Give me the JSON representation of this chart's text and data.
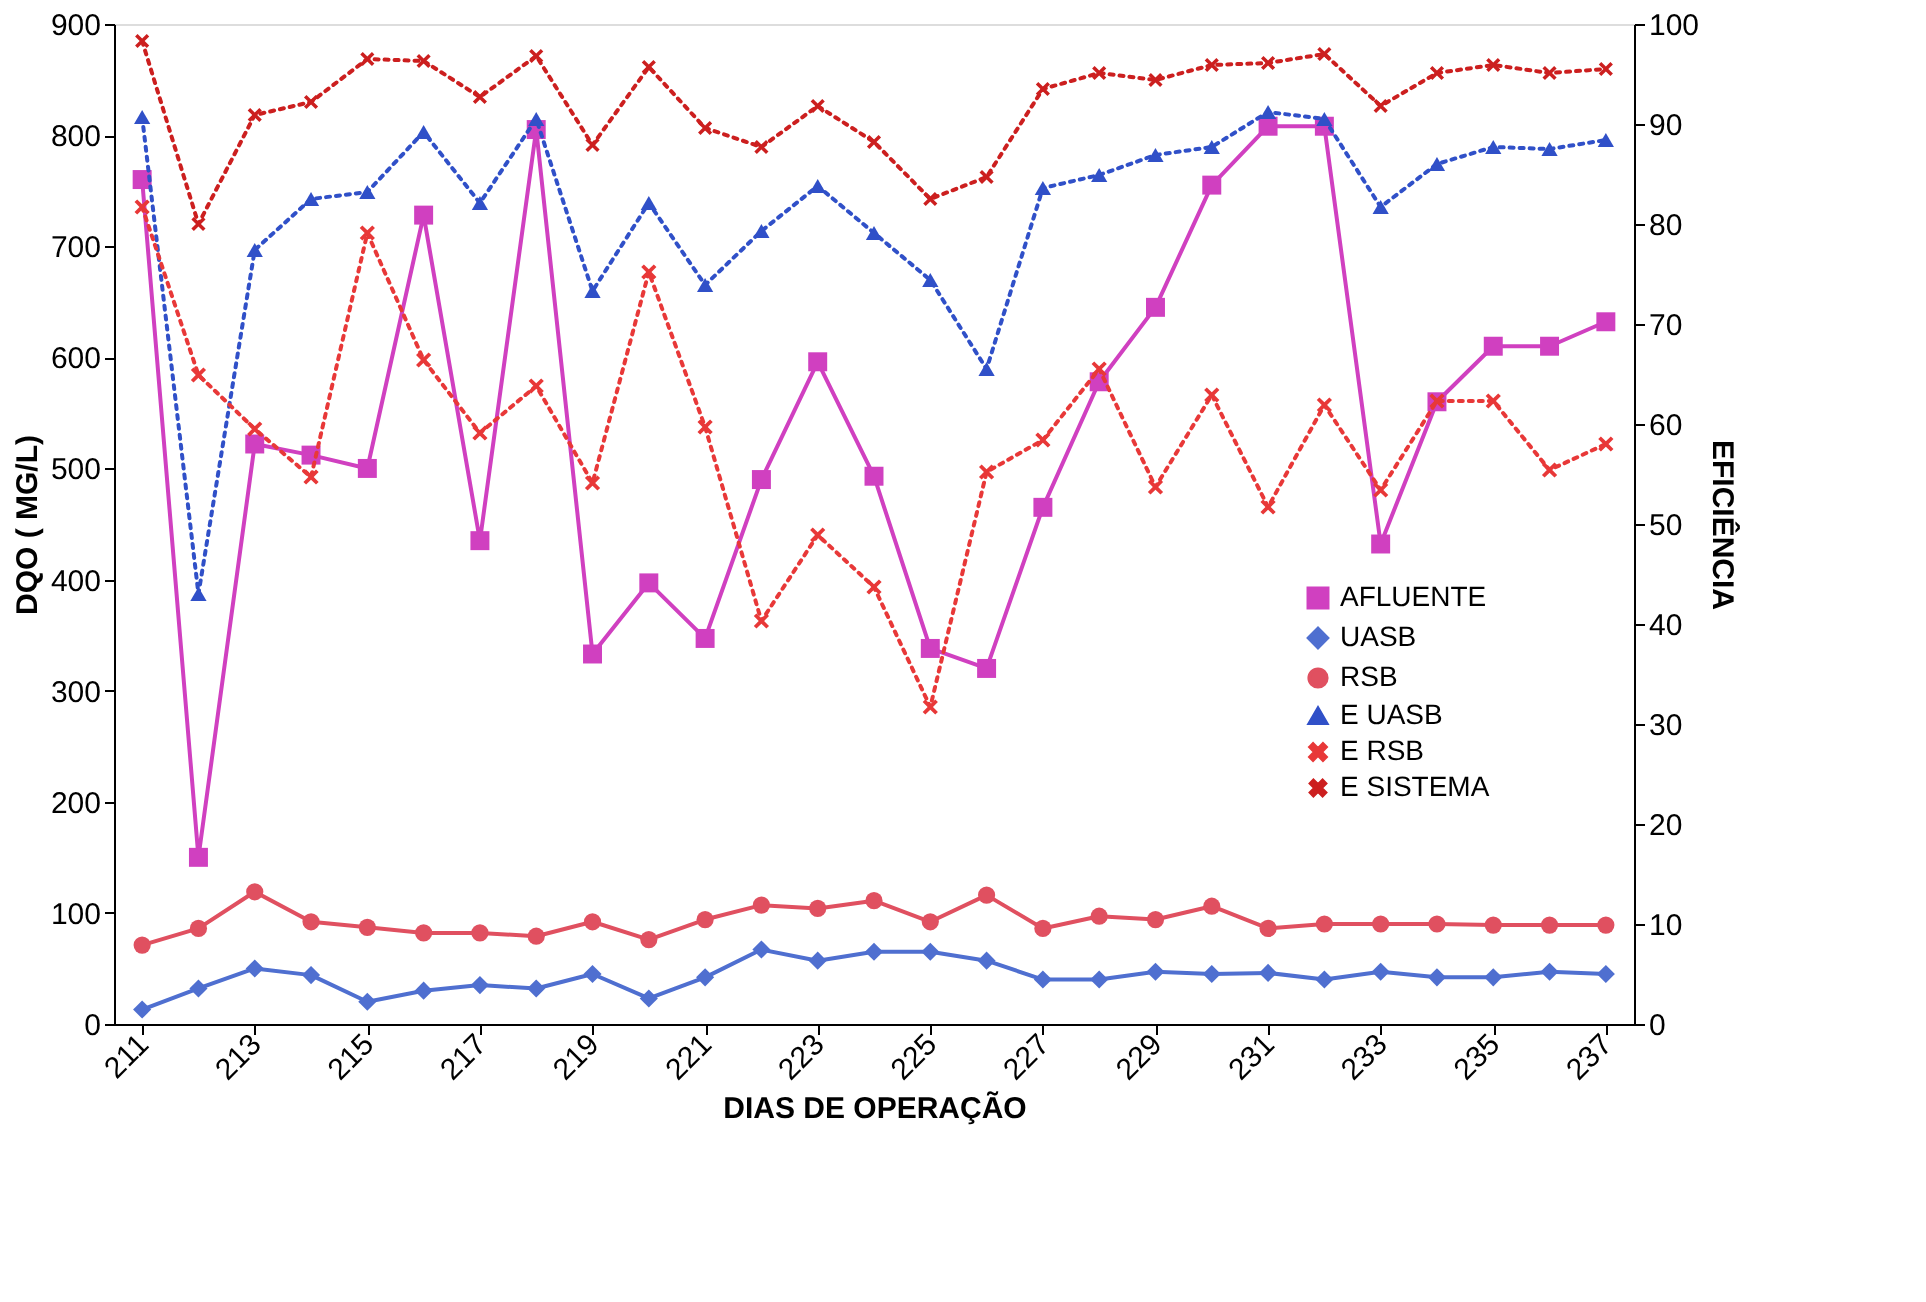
{
  "chart_data": {
    "type": "line",
    "xlabel": "DIAS DE OPERAÇÃO",
    "ylabel": "DQO ( MG/L)",
    "y2label": "EFICIÊNCIA",
    "x": [
      211,
      212,
      213,
      214,
      215,
      216,
      217,
      218,
      219,
      220,
      221,
      222,
      223,
      224,
      225,
      226,
      227,
      228,
      229,
      230,
      231,
      232,
      233,
      234,
      235,
      236,
      237
    ],
    "xlim": [
      210.5,
      237.5
    ],
    "xticks": [
      211,
      213,
      215,
      217,
      219,
      221,
      223,
      225,
      227,
      229,
      231,
      233,
      235,
      237
    ],
    "ylim": [
      0,
      900
    ],
    "yticks": [
      0,
      100,
      200,
      300,
      400,
      500,
      600,
      700,
      800,
      900
    ],
    "y2lim": [
      0,
      100
    ],
    "y2ticks": [
      0,
      10,
      20,
      30,
      40,
      50,
      60,
      70,
      80,
      90,
      100
    ],
    "grid": false,
    "legend": "right",
    "series": [
      {
        "name": "AFLUENTE",
        "color": "#d040c0",
        "marker": "square",
        "line_style": "solid",
        "values": [
          760,
          150,
          522,
          512,
          500,
          728,
          435,
          805,
          333,
          397,
          347,
          490,
          596,
          493,
          338,
          320,
          465,
          578,
          645,
          755,
          808,
          808,
          432,
          560,
          610,
          610,
          632
        ]
      },
      {
        "name": "UASB",
        "color": "#4f6fd0",
        "marker": "diamond",
        "line_style": "solid",
        "values": [
          13,
          32,
          50,
          44,
          20,
          30,
          35,
          32,
          45,
          23,
          42,
          67,
          57,
          65,
          65,
          57,
          40,
          40,
          47,
          45,
          46,
          40,
          47,
          42,
          42,
          47,
          45
        ]
      },
      {
        "name": "RSB",
        "color": "#e05060",
        "marker": "circle",
        "line_style": "solid",
        "values": [
          71,
          86,
          119,
          92,
          87,
          82,
          82,
          79,
          92,
          76,
          94,
          107,
          104,
          111,
          92,
          116,
          86,
          97,
          94,
          106,
          86,
          90,
          90,
          90,
          89,
          89,
          89
        ]
      },
      {
        "name": "E UASB",
        "color": "#3050c8",
        "marker": "triangle",
        "line_style": "dotted",
        "axis": "y2",
        "values": [
          90.7,
          43,
          77.4,
          82.5,
          83.2,
          89.2,
          82.1,
          90.5,
          73.3,
          82.1,
          73.9,
          79.3,
          83.8,
          79.1,
          74.4,
          65.5,
          83.6,
          84.9,
          86.9,
          87.7,
          91.2,
          90.5,
          81.7,
          86,
          87.7,
          87.5,
          88.4
        ]
      },
      {
        "name": "E RSB",
        "color": "#e83838",
        "marker": "cross",
        "line_style": "dotted",
        "axis": "y2",
        "values": [
          81.7,
          64.9,
          59.5,
          54.7,
          79.1,
          66.4,
          59.1,
          63.8,
          54.1,
          75.2,
          59.7,
          40.3,
          48.9,
          43.7,
          31.7,
          55.2,
          58.4,
          65.5,
          53.7,
          62.9,
          51.7,
          61.9,
          53.4,
          62.3,
          62.3,
          55.4,
          58
        ]
      },
      {
        "name": "E SISTEMA",
        "color": "#cc1f1f",
        "marker": "cross",
        "line_style": "dotted",
        "axis": "y2",
        "values": [
          98.3,
          80,
          90.9,
          92.2,
          96.5,
          96.3,
          92.7,
          96.8,
          87.9,
          95.7,
          89.6,
          87.7,
          91.8,
          88.2,
          82.5,
          84.7,
          93.5,
          95.1,
          94.4,
          95.9,
          96.1,
          97,
          91.8,
          95.1,
          95.9,
          95.1,
          95.5
        ]
      }
    ]
  }
}
